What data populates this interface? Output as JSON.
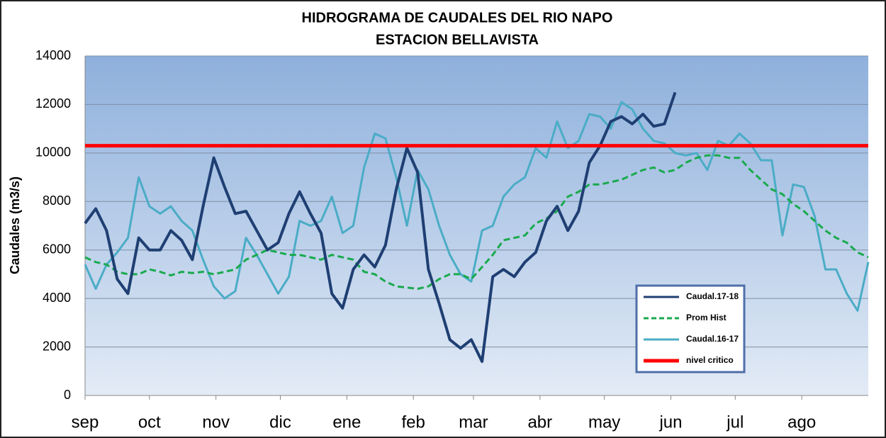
{
  "chart_data": {
    "type": "line",
    "title": [
      "HIDROGRAMA DE CAUDALES DEL RIO NAPO",
      "ESTACION BELLAVISTA"
    ],
    "y_label": "Caudales  (m3/s)",
    "xlim": [
      0,
      365
    ],
    "xticks": [
      {
        "value": 0,
        "label": "sep"
      },
      {
        "value": 30,
        "label": "oct"
      },
      {
        "value": 61,
        "label": "nov"
      },
      {
        "value": 91,
        "label": "dic"
      },
      {
        "value": 122,
        "label": "ene"
      },
      {
        "value": 153,
        "label": "feb"
      },
      {
        "value": 181,
        "label": "mar"
      },
      {
        "value": 212,
        "label": "abr"
      },
      {
        "value": 242,
        "label": "may"
      },
      {
        "value": 273,
        "label": "jun"
      },
      {
        "value": 303,
        "label": "jul"
      },
      {
        "value": 334,
        "label": "ago"
      }
    ],
    "ylim": [
      0,
      14000
    ],
    "yticks": [
      0,
      2000,
      4000,
      6000,
      8000,
      10000,
      12000,
      14000
    ],
    "grid": true,
    "x": [
      0,
      5,
      10,
      15,
      20,
      25,
      30,
      35,
      40,
      45,
      50,
      55,
      60,
      65,
      70,
      75,
      80,
      85,
      90,
      95,
      100,
      105,
      110,
      115,
      120,
      125,
      130,
      135,
      140,
      145,
      150,
      155,
      160,
      165,
      170,
      175,
      180,
      185,
      190,
      195,
      200,
      205,
      210,
      215,
      220,
      225,
      230,
      235,
      240,
      245,
      250,
      255,
      260,
      265,
      270,
      275,
      280,
      285,
      290,
      295,
      300,
      305,
      310,
      315,
      320,
      325,
      330,
      335,
      340,
      345,
      350,
      355,
      360,
      365
    ],
    "series": [
      {
        "name": "Caudal.17-18",
        "color": "#1f3f73",
        "values": [
          7100,
          7700,
          6800,
          4800,
          4200,
          6500,
          6000,
          6000,
          6800,
          6400,
          5600,
          7800,
          9800,
          8600,
          7500,
          7600,
          6800,
          6000,
          6300,
          7500,
          8400,
          7500,
          6700,
          4200,
          3600,
          5200,
          5800,
          5300,
          6200,
          8500,
          10200,
          9200,
          5200,
          3800,
          2300,
          1950,
          2300,
          1400,
          4900,
          5200,
          4900,
          5500,
          5900,
          7200,
          7800,
          6800,
          7600,
          9600,
          10300,
          11300,
          11500,
          11200,
          11600,
          11100,
          11200,
          12500,
          null,
          null,
          null,
          null,
          null,
          null,
          null,
          null,
          null,
          null,
          null,
          null,
          null,
          null,
          null,
          null,
          null,
          null
        ]
      },
      {
        "name": "Prom Hist",
        "color": "#1aaa4e",
        "dashed": true,
        "values": [
          5700,
          5500,
          5400,
          5100,
          5000,
          5000,
          5200,
          5100,
          4950,
          5100,
          5050,
          5100,
          5000,
          5100,
          5200,
          5600,
          5800,
          6000,
          5900,
          5800,
          5800,
          5700,
          5600,
          5800,
          5700,
          5600,
          5100,
          5000,
          4700,
          4500,
          4450,
          4400,
          4500,
          4800,
          5000,
          5000,
          4800,
          5300,
          5800,
          6400,
          6500,
          6600,
          7100,
          7300,
          7600,
          8200,
          8400,
          8700,
          8700,
          8800,
          8900,
          9100,
          9300,
          9400,
          9200,
          9300,
          9600,
          9800,
          9900,
          9900,
          9800,
          9800,
          9300,
          8900,
          8500,
          8300,
          7900,
          7600,
          7200,
          6800,
          6500,
          6300,
          5900,
          5700
        ]
      },
      {
        "name": "Caudal.16-17",
        "color": "#4bacc6",
        "values": [
          5400,
          4400,
          5400,
          5900,
          6500,
          9000,
          7800,
          7500,
          7800,
          7200,
          6800,
          5600,
          4500,
          4000,
          4300,
          6500,
          5800,
          5000,
          4200,
          4900,
          7200,
          7000,
          7200,
          8200,
          6700,
          7000,
          9400,
          10800,
          10600,
          9000,
          7000,
          9300,
          8500,
          7000,
          5800,
          5000,
          4700,
          6800,
          7000,
          8200,
          8700,
          9000,
          10200,
          9800,
          11300,
          10200,
          10500,
          11600,
          11500,
          11000,
          12100,
          11800,
          11000,
          10500,
          10400,
          10000,
          9900,
          10000,
          9300,
          10500,
          10300,
          10800,
          10400,
          9700,
          9700,
          6600,
          8700,
          8600,
          7400,
          5200,
          5200,
          4200,
          3500,
          5500
        ]
      },
      {
        "name": "nivel critico",
        "color": "#ff0000",
        "x": [
          0,
          365
        ],
        "values": [
          10300,
          10300
        ]
      }
    ]
  }
}
